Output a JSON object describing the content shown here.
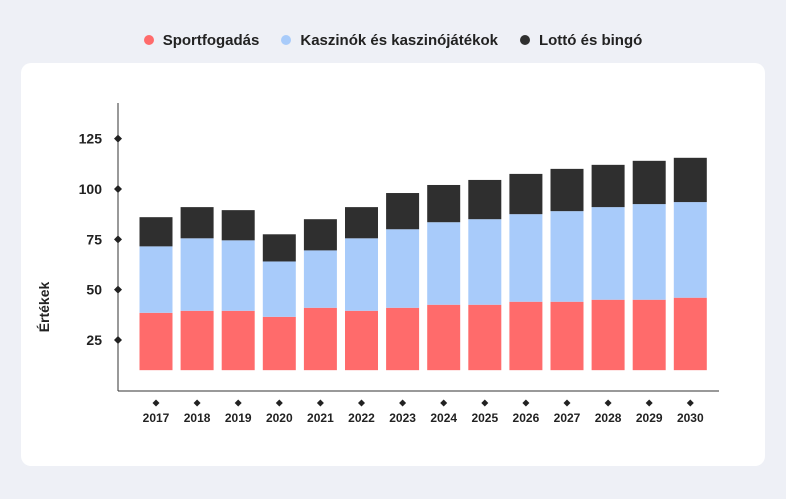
{
  "chart_data": {
    "type": "bar",
    "stacked": true,
    "categories": [
      "2017",
      "2018",
      "2019",
      "2020",
      "2021",
      "2022",
      "2023",
      "2024",
      "2025",
      "2026",
      "2027",
      "2028",
      "2029",
      "2030"
    ],
    "baseline": 10,
    "series": [
      {
        "name": "Sportfogadás",
        "color": "#ff6b6b",
        "values": [
          28.5,
          29.5,
          29.5,
          26.5,
          31,
          29.5,
          31,
          32.5,
          32.5,
          34,
          34,
          35,
          35,
          36
        ]
      },
      {
        "name": "Kaszinók és kaszinójátékok",
        "color": "#a8cbfa",
        "values": [
          33,
          36,
          35,
          27.5,
          28.5,
          36,
          39,
          41,
          42.5,
          43.5,
          45,
          46,
          47.5,
          47.5
        ]
      },
      {
        "name": "Lottó és bingó",
        "color": "#2f2f2f",
        "values": [
          14.5,
          15.5,
          15,
          13.5,
          15.5,
          15.5,
          18,
          18.5,
          19.5,
          20,
          21,
          21,
          21.5,
          22
        ]
      }
    ],
    "ylabel": "Értékek",
    "xlabel": "",
    "yticks": [
      25,
      50,
      75,
      100,
      125
    ],
    "ylim": [
      0,
      140
    ],
    "legend": "top-center"
  }
}
